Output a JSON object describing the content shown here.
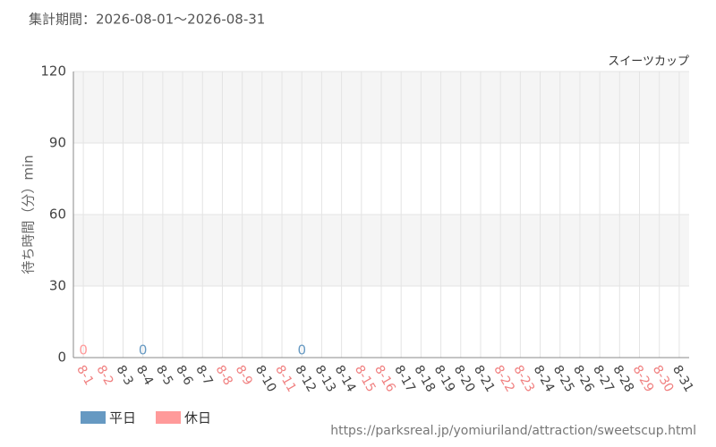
{
  "chart_data": {
    "type": "bar",
    "title": "集計期間：2026-08-01～2026-08-31",
    "subtitle": "スイーツカップ",
    "y_label": "待ち時間（分）min",
    "source": "https://parksreal.jp/yomiuriland/attraction/sweetscup.html",
    "categories": [
      "8-1",
      "8-2",
      "8-3",
      "8-4",
      "8-5",
      "8-6",
      "8-7",
      "8-8",
      "8-9",
      "8-10",
      "8-11",
      "8-12",
      "8-13",
      "8-14",
      "8-15",
      "8-16",
      "8-17",
      "8-18",
      "8-19",
      "8-20",
      "8-21",
      "8-22",
      "8-23",
      "8-24",
      "8-25",
      "8-26",
      "8-27",
      "8-28",
      "8-29",
      "8-30",
      "8-31"
    ],
    "category_colors": [
      "#f08080",
      "#f08080",
      "#444",
      "#444",
      "#444",
      "#444",
      "#444",
      "#f08080",
      "#f08080",
      "#444",
      "#f08080",
      "#444",
      "#444",
      "#444",
      "#f08080",
      "#f08080",
      "#444",
      "#444",
      "#444",
      "#444",
      "#444",
      "#f08080",
      "#f08080",
      "#444",
      "#444",
      "#444",
      "#444",
      "#444",
      "#f08080",
      "#f08080",
      "#444"
    ],
    "series": [
      {
        "name": "平日",
        "color": "#6699c2",
        "values": [
          null,
          null,
          null,
          0,
          null,
          null,
          null,
          null,
          null,
          null,
          null,
          0,
          null,
          null,
          null,
          null,
          null,
          null,
          null,
          null,
          null,
          null,
          null,
          null,
          null,
          null,
          null,
          null,
          null,
          null,
          null
        ]
      },
      {
        "name": "休日",
        "color": "#ff9a9a",
        "values": [
          0,
          null,
          null,
          null,
          null,
          null,
          null,
          null,
          null,
          null,
          null,
          null,
          null,
          null,
          null,
          null,
          null,
          null,
          null,
          null,
          null,
          null,
          null,
          null,
          null,
          null,
          null,
          null,
          null,
          null,
          null
        ]
      }
    ],
    "ylim": [
      0,
      120
    ],
    "yticks": [
      0,
      30,
      60,
      90,
      120
    ],
    "grid": true,
    "legend": "bottom-left"
  }
}
